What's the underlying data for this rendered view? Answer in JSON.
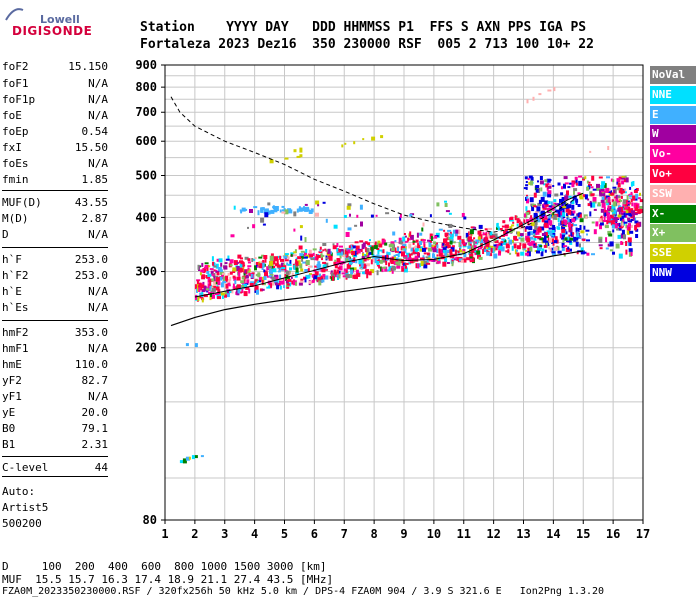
{
  "logo": {
    "top": "Lowell",
    "bottom": "DIGISONDE"
  },
  "header": {
    "line1": "Station    YYYY DAY   DDD HHMMSS P1  FFS S AXN PPS IGA PS",
    "line2": "Fortaleza 2023 Dez16  350 230000 RSF  005 2 713 100 10+ 22"
  },
  "params": [
    {
      "label": "foF2",
      "value": "15.150"
    },
    {
      "label": "foF1",
      "value": "N/A"
    },
    {
      "label": "foF1p",
      "value": "N/A"
    },
    {
      "label": "foE",
      "value": "N/A"
    },
    {
      "label": "foEp",
      "value": "0.54"
    },
    {
      "label": "fxI",
      "value": "15.50"
    },
    {
      "label": "foEs",
      "value": "N/A"
    },
    {
      "label": "fmin",
      "value": "1.85"
    },
    {
      "label": "MUF(D)",
      "value": "43.55"
    },
    {
      "label": "M(D)",
      "value": "2.87"
    },
    {
      "label": "D",
      "value": "N/A"
    },
    {
      "label": "h`F",
      "value": "253.0"
    },
    {
      "label": "h`F2",
      "value": "253.0"
    },
    {
      "label": "h`E",
      "value": "N/A"
    },
    {
      "label": "h`Es",
      "value": "N/A"
    },
    {
      "label": "hmF2",
      "value": "353.0"
    },
    {
      "label": "hmF1",
      "value": "N/A"
    },
    {
      "label": "hmE",
      "value": "110.0"
    },
    {
      "label": "yF2",
      "value": "82.7"
    },
    {
      "label": "yF1",
      "value": "N/A"
    },
    {
      "label": "yE",
      "value": "20.0"
    },
    {
      "label": "B0",
      "value": "79.1"
    },
    {
      "label": "B1",
      "value": "2.31"
    },
    {
      "label": "C-level",
      "value": "44"
    }
  ],
  "auto": {
    "line1": "Auto:",
    "line2": "Artist5",
    "line3": "500200"
  },
  "legend": [
    {
      "label": "NoVal",
      "color": "#808080"
    },
    {
      "label": "NNE",
      "color": "#00e0ff"
    },
    {
      "label": "E",
      "color": "#40b0ff"
    },
    {
      "label": "W",
      "color": "#a000a0"
    },
    {
      "label": "Vo-",
      "color": "#ff00a0"
    },
    {
      "label": "Vo+",
      "color": "#ff0040"
    },
    {
      "label": "SSW",
      "color": "#ffb0b0"
    },
    {
      "label": "X-",
      "color": "#008000"
    },
    {
      "label": "X+",
      "color": "#80c060"
    },
    {
      "label": "SSE",
      "color": "#d0d000"
    },
    {
      "label": "NNW",
      "color": "#0000e0"
    }
  ],
  "footer": {
    "line1": "D     100  200  400  600  800 1000 1500 3000 [km]",
    "line2": "MUF  15.5 15.7 16.3 17.4 18.9 21.1 27.4 43.5 [MHz]",
    "line3": "FZA0M_2023350230000.RSF / 320fx256h 50 kHz 5.0 km / DPS-4 FZA0M 904 / 3.9 S 321.6 E   Ion2Png 1.3.20"
  },
  "chart_data": {
    "type": "scatter",
    "xlim": [
      1,
      17
    ],
    "ylim": [
      80,
      900
    ],
    "scale_y": "log",
    "x_ticks": [
      "1",
      "2",
      "3",
      "4",
      "5",
      "6",
      "7",
      "8",
      "9",
      "10",
      "11",
      "12",
      "13",
      "14",
      "15",
      "16",
      "17"
    ],
    "y_ticks": [
      "80",
      "200",
      "300",
      "400",
      "500",
      "600",
      "700",
      "800",
      "900"
    ],
    "y_tick_values": [
      80,
      200,
      300,
      400,
      500,
      600,
      700,
      800,
      900
    ],
    "grid": true,
    "series": [
      {
        "name": "NoVal",
        "color": "#808080"
      },
      {
        "name": "NNE",
        "color": "#00e0ff"
      },
      {
        "name": "E",
        "color": "#40b0ff"
      },
      {
        "name": "W",
        "color": "#a000a0"
      },
      {
        "name": "Vo-",
        "color": "#ff00a0"
      },
      {
        "name": "Vo+",
        "color": "#ff0040"
      },
      {
        "name": "SSW",
        "color": "#ffb0b0"
      },
      {
        "name": "X-",
        "color": "#008000"
      },
      {
        "name": "X+",
        "color": "#80c060"
      },
      {
        "name": "SSE",
        "color": "#d0d000"
      },
      {
        "name": "NNW",
        "color": "#0000e0"
      }
    ],
    "lower_profile": [
      [
        1.2,
        225
      ],
      [
        2,
        235
      ],
      [
        3,
        245
      ],
      [
        4,
        252
      ],
      [
        5,
        258
      ],
      [
        6,
        263
      ],
      [
        7,
        270
      ],
      [
        8,
        276
      ],
      [
        9,
        282
      ],
      [
        10,
        290
      ],
      [
        11,
        298
      ],
      [
        12,
        306
      ],
      [
        13,
        316
      ],
      [
        14,
        326
      ],
      [
        15,
        335
      ]
    ],
    "upper_trace": [
      [
        2,
        262
      ],
      [
        3,
        270
      ],
      [
        4,
        278
      ],
      [
        5,
        290
      ],
      [
        6,
        302
      ],
      [
        7,
        315
      ],
      [
        8,
        325
      ],
      [
        9,
        318
      ],
      [
        10,
        320
      ],
      [
        11,
        330
      ],
      [
        12,
        355
      ],
      [
        13,
        385
      ],
      [
        14,
        420
      ],
      [
        14.5,
        440
      ],
      [
        15,
        455
      ]
    ],
    "muf_curve": [
      [
        1.2,
        760
      ],
      [
        1.5,
        700
      ],
      [
        2,
        650
      ],
      [
        3,
        600
      ],
      [
        4,
        565
      ],
      [
        5,
        530
      ],
      [
        6,
        490
      ],
      [
        7,
        460
      ],
      [
        8,
        430
      ],
      [
        9,
        405
      ],
      [
        10,
        390
      ],
      [
        11,
        378
      ],
      [
        12,
        370
      ],
      [
        13,
        380
      ],
      [
        14,
        410
      ],
      [
        14.7,
        440
      ]
    ]
  }
}
